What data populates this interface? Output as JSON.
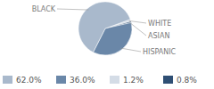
{
  "chart_data": {
    "type": "pie",
    "categories": [
      "BLACK",
      "HISPANIC",
      "WHITE",
      "ASIAN"
    ],
    "values": [
      62.0,
      36.0,
      1.2,
      0.8
    ],
    "value_labels": [
      "62.0%",
      "36.0%",
      "1.2%",
      "0.8%"
    ],
    "colors": [
      "#a9b9cc",
      "#6a87a8",
      "#d4dce6",
      "#2f4f74"
    ],
    "legend": "bottom"
  }
}
